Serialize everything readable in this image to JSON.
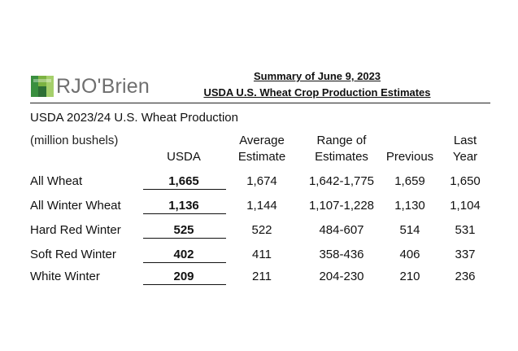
{
  "logo": {
    "text": "RJO'Brien",
    "icon": "rjo-brien-logo-mark",
    "color": "#2e8b3a"
  },
  "summary": {
    "line1": "Summary of June 9, 2023",
    "line2": "USDA U.S. Wheat Crop Production Estimates"
  },
  "table": {
    "title": "USDA 2023/24 U.S. Wheat Production",
    "unit": "(million bushels)",
    "headers": {
      "usda": "USDA",
      "avg_l1": "Average",
      "avg_l2": "Estimate",
      "range_l1": "Range of",
      "range_l2": "Estimates",
      "previous": "Previous",
      "last_l1": "Last",
      "last_l2": "Year"
    },
    "rows": [
      {
        "label": "All Wheat",
        "usda": "1,665",
        "avg": "1,674",
        "range": "1,642-1,775",
        "previous": "1,659",
        "last": "1,650"
      },
      {
        "label": "All Winter Wheat",
        "usda": "1,136",
        "avg": "1,144",
        "range": "1,107-1,228",
        "previous": "1,130",
        "last": "1,104"
      },
      {
        "label": "Hard Red Winter",
        "usda": "525",
        "avg": "522",
        "range": "484-607",
        "previous": "514",
        "last": "531"
      },
      {
        "label": "Soft Red Winter",
        "usda": "402",
        "avg": "411",
        "range": "358-436",
        "previous": "406",
        "last": "337"
      },
      {
        "label": "White Winter",
        "usda": "209",
        "avg": "211",
        "range": "204-230",
        "previous": "210",
        "last": "236"
      }
    ]
  }
}
